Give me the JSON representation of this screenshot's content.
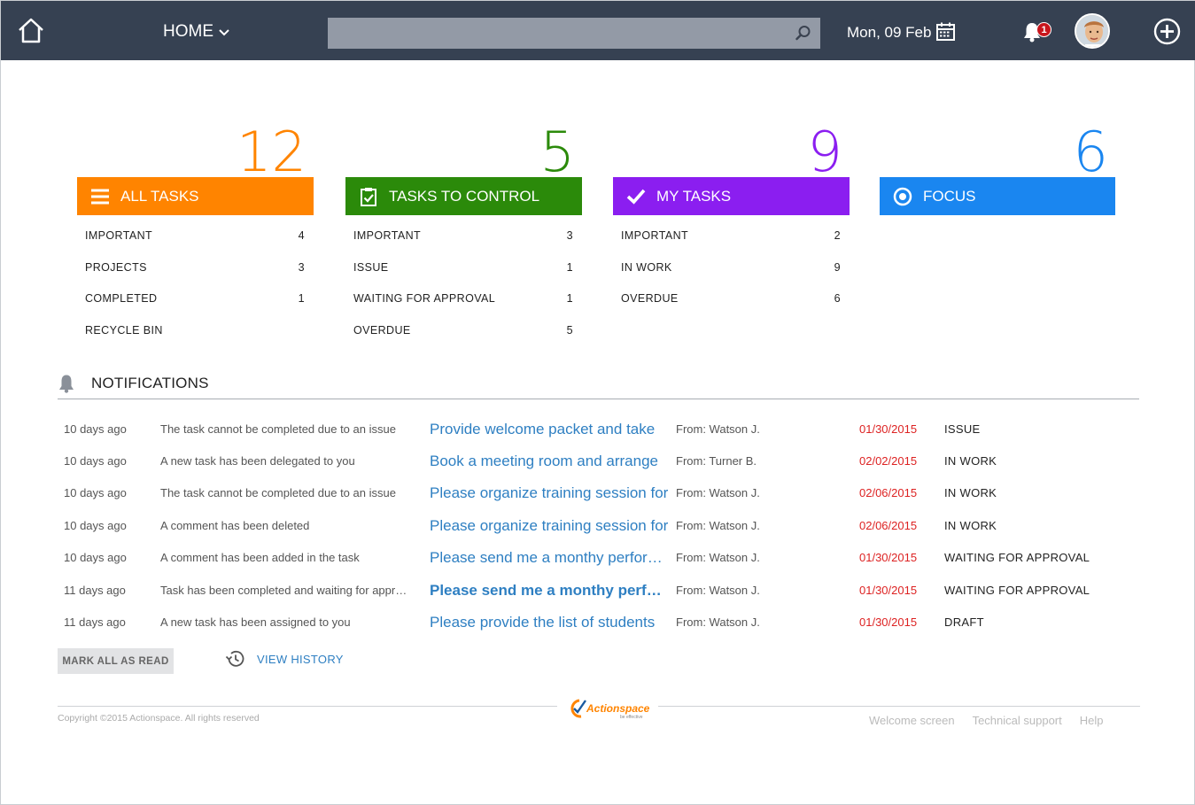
{
  "header": {
    "home_menu_label": "HOME",
    "search_placeholder": "",
    "date": "Mon, 09 Feb",
    "notification_count": "1"
  },
  "tiles": [
    {
      "id": "all",
      "count": "12",
      "title": "ALL TASKS",
      "color": "#ff8400",
      "icon": "list-icon",
      "items": [
        {
          "label": "IMPORTANT",
          "value": "4"
        },
        {
          "label": "PROJECTS",
          "value": "3"
        },
        {
          "label": "COMPLETED",
          "value": "1"
        },
        {
          "label": "RECYCLE BIN",
          "value": ""
        }
      ]
    },
    {
      "id": "control",
      "count": "5",
      "title": "TASKS TO CONTROL",
      "color": "#2b8a0a",
      "icon": "clipboard-check-icon",
      "items": [
        {
          "label": "IMPORTANT",
          "value": "3"
        },
        {
          "label": "ISSUE",
          "value": "1"
        },
        {
          "label": "WAITING FOR APPROVAL",
          "value": "1"
        },
        {
          "label": "OVERDUE",
          "value": "5"
        }
      ]
    },
    {
      "id": "my",
      "count": "9",
      "title": "MY TASKS",
      "color": "#8b1ef0",
      "icon": "check-icon",
      "items": [
        {
          "label": "IMPORTANT",
          "value": "2"
        },
        {
          "label": "IN WORK",
          "value": "9"
        },
        {
          "label": "OVERDUE",
          "value": "6"
        }
      ]
    },
    {
      "id": "focus",
      "count": "6",
      "title": "FOCUS",
      "color": "#1a86f0",
      "icon": "target-icon",
      "items": []
    }
  ],
  "notifications": {
    "title": "NOTIFICATIONS",
    "rows": [
      {
        "time": "10 days ago",
        "message": "The task cannot be completed due to an issue",
        "task": "Provide welcome packet and take",
        "bold": false,
        "from": "From: Watson J.",
        "date": "01/30/2015",
        "status": "ISSUE"
      },
      {
        "time": "10 days ago",
        "message": "A new task has been delegated to you",
        "task": "Book a meeting room and arrange",
        "bold": false,
        "from": "From: Turner B.",
        "date": "02/02/2015",
        "status": "IN WORK"
      },
      {
        "time": "10 days ago",
        "message": "The task cannot be completed due to an issue",
        "task": "Please organize training session for",
        "bold": false,
        "from": "From: Watson J.",
        "date": "02/06/2015",
        "status": "IN WORK"
      },
      {
        "time": "10 days ago",
        "message": "A comment has been deleted",
        "task": "Please organize training session for",
        "bold": false,
        "from": "From: Watson J.",
        "date": "02/06/2015",
        "status": "IN WORK"
      },
      {
        "time": "10 days ago",
        "message": "A comment has been added in the task",
        "task": "Please send me a monthy performance",
        "bold": false,
        "from": "From: Watson J.",
        "date": "01/30/2015",
        "status": "WAITING FOR APPROVAL"
      },
      {
        "time": "11 days ago",
        "message": "Task has been completed and waiting for approval",
        "task": "Please send me a monthy performance",
        "bold": true,
        "from": "From: Watson J.",
        "date": "01/30/2015",
        "status": "WAITING FOR APPROVAL"
      },
      {
        "time": "11 days ago",
        "message": "A new task has been assigned to you",
        "task": "Please provide the list of students",
        "bold": false,
        "from": "From: Watson J.",
        "date": "01/30/2015",
        "status": "DRAFT"
      }
    ],
    "mark_all_label": "MARK ALL AS READ",
    "view_history_label": "VIEW HISTORY"
  },
  "footer": {
    "copyright": "Copyright ©2015 Actionspace. All rights reserved",
    "logo_text": "Actionspace",
    "logo_tagline": "be effective",
    "links": [
      "Welcome screen",
      "Technical support",
      "Help"
    ]
  }
}
